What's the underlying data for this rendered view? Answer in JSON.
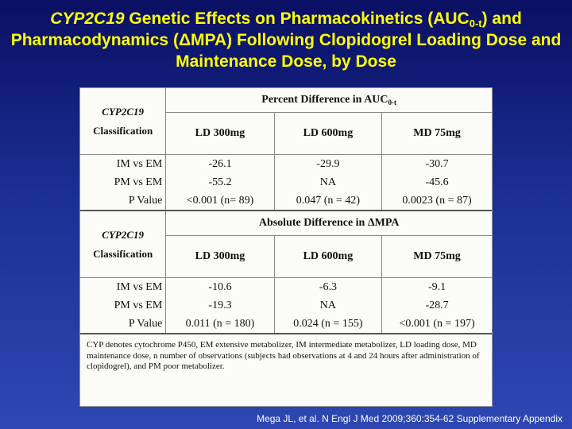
{
  "slide": {
    "title_prefix_italic": "CYP2C19",
    "title_part1": " Genetic Effects on Pharmacokinetics (AUC",
    "title_sub": "0-t",
    "title_part2": ") and Pharmacodynamics (",
    "title_delta": "Δ",
    "title_part3": "MPA) Following Clopidogrel Loading Dose and Maintenance Dose, by Dose",
    "citation": "Mega JL, et al. N Engl J Med 2009;360:354-62 Supplementary Appendix"
  },
  "table": {
    "section1": {
      "header_main": "Percent Difference in AUC",
      "header_sub": "0-t",
      "class_label_italic": "CYP2C19",
      "class_label": "Classification",
      "columns": [
        "LD 300mg",
        "LD 600mg",
        "MD 75mg"
      ],
      "rows": [
        {
          "label": "IM vs EM",
          "values": [
            "-26.1",
            "-29.9",
            "-30.7"
          ]
        },
        {
          "label": "PM vs EM",
          "values": [
            "-55.2",
            "NA",
            "-45.6"
          ]
        },
        {
          "label": "P Value",
          "values": [
            "<0.001 (n= 89)",
            "0.047 (n = 42)",
            "0.0023 (n = 87)"
          ]
        }
      ]
    },
    "section2": {
      "header_main": "Absolute Difference in ΔMPA",
      "class_label_italic": "CYP2C19",
      "class_label": "Classification",
      "columns": [
        "LD 300mg",
        "LD 600mg",
        "MD 75mg"
      ],
      "rows": [
        {
          "label": "IM vs EM",
          "values": [
            "-10.6",
            "-6.3",
            "-9.1"
          ]
        },
        {
          "label": "PM vs EM",
          "values": [
            "-19.3",
            "NA",
            "-28.7"
          ]
        },
        {
          "label": "P Value",
          "values": [
            "0.011 (n = 180)",
            "0.024 (n = 155)",
            "<0.001 (n = 197)"
          ]
        }
      ]
    },
    "footnote": "CYP denotes cytochrome P450, EM extensive metabolizer, IM intermediate metabolizer, LD loading dose, MD maintenance dose, n number of observations (subjects had observations at 4 and 24 hours after administration of clopidogrel), and PM poor metabolizer."
  }
}
